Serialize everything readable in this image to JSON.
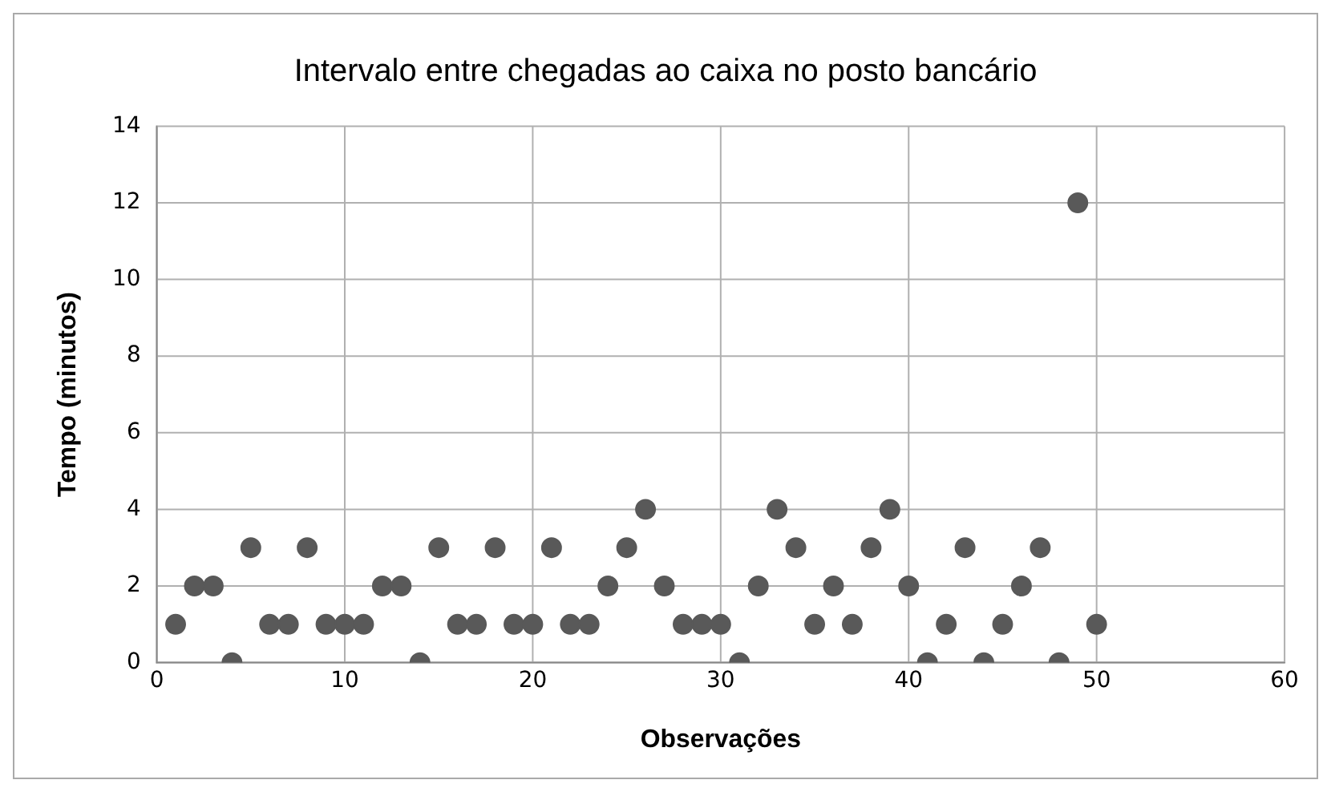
{
  "chart_data": {
    "type": "scatter",
    "title": "Intervalo entre chegadas ao caixa no posto bancário",
    "xlabel": "Observações",
    "ylabel": "Tempo (minutos)",
    "x": [
      1,
      2,
      3,
      4,
      5,
      6,
      7,
      8,
      9,
      10,
      11,
      12,
      13,
      14,
      15,
      16,
      17,
      18,
      19,
      20,
      21,
      22,
      23,
      24,
      25,
      26,
      27,
      28,
      29,
      30,
      31,
      32,
      33,
      34,
      35,
      36,
      37,
      38,
      39,
      40,
      41,
      42,
      43,
      44,
      45,
      46,
      47,
      48,
      49,
      50
    ],
    "series": [
      {
        "color": "#595959",
        "values": [
          1,
          2,
          2,
          0,
          3,
          1,
          1,
          3,
          1,
          1,
          1,
          2,
          2,
          0,
          3,
          1,
          1,
          3,
          1,
          1,
          3,
          1,
          1,
          2,
          3,
          4,
          2,
          1,
          1,
          1,
          0,
          2,
          4,
          3,
          1,
          2,
          1,
          3,
          4,
          2,
          0,
          1,
          3,
          0,
          1,
          2,
          3,
          0,
          12,
          1
        ]
      }
    ],
    "xlim": [
      0,
      60
    ],
    "xticks": [
      0,
      10,
      20,
      30,
      40,
      50,
      60
    ],
    "ylim": [
      0,
      14
    ],
    "yticks": [
      0,
      2,
      4,
      6,
      8,
      10,
      12,
      14
    ],
    "grid": true,
    "legend": false,
    "marker": "circle"
  }
}
